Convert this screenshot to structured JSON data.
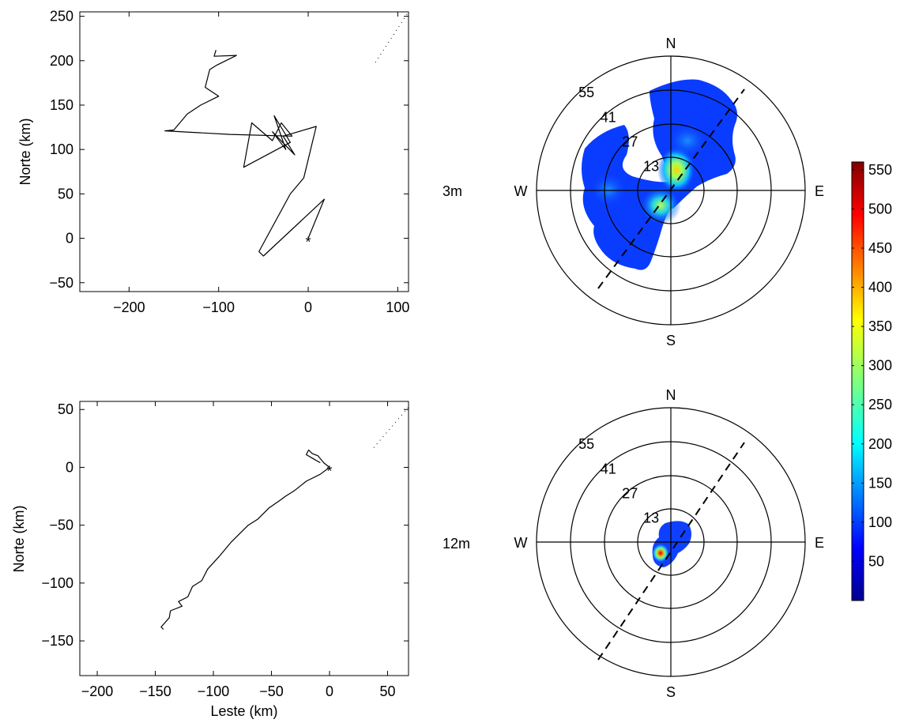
{
  "chart_data": [
    {
      "type": "line",
      "panel": "trajectory-3m",
      "ylabel": "Norte (km)",
      "xlabel": "",
      "xlim": [
        -255,
        112
      ],
      "ylim": [
        -60,
        255
      ],
      "xticks": [
        -200,
        -100,
        0,
        100
      ],
      "yticks": [
        -50,
        0,
        50,
        100,
        150,
        200,
        250
      ],
      "start_marker": {
        "x": 0,
        "y": 0,
        "symbol": "*"
      },
      "diagonal_reference": {
        "style": "dotted",
        "x": [
          75,
          112
        ],
        "y": [
          198,
          255
        ]
      },
      "series": [
        {
          "x": [
            0,
            18,
            -50,
            -55,
            -20,
            -5,
            -4,
            9,
            -28,
            -15,
            -40,
            -25,
            -38,
            -20,
            -72,
            -63,
            -40,
            -30,
            -18,
            -87,
            -160,
            -150,
            -135,
            -120,
            -100,
            -115,
            -110,
            -102,
            -80,
            -105,
            -103
          ],
          "y": [
            0,
            44,
            -20,
            -15,
            50,
            68,
            72,
            126,
            115,
            94,
            120,
            100,
            138,
            108,
            80,
            130,
            110,
            130,
            115,
            117,
            121,
            122,
            140,
            150,
            160,
            170,
            190,
            195,
            206,
            205,
            212
          ]
        }
      ]
    },
    {
      "type": "line",
      "panel": "trajectory-12m",
      "ylabel": "Norte (km)",
      "xlabel": "Leste (km)",
      "xlim": [
        -215,
        68
      ],
      "ylim": [
        -180,
        57
      ],
      "xticks": [
        -200,
        -150,
        -100,
        -50,
        0,
        50
      ],
      "yticks": [
        -150,
        -100,
        -50,
        0,
        50
      ],
      "start_marker": {
        "x": 0,
        "y": 0,
        "symbol": "*"
      },
      "diagonal_reference": {
        "style": "dotted",
        "x": [
          38,
          68
        ],
        "y": [
          17,
          52
        ]
      },
      "series": [
        {
          "x": [
            0,
            -8,
            -20,
            -30,
            -38,
            -42,
            -52,
            -62,
            -70,
            -85,
            -95,
            -105,
            -110,
            -118,
            -122,
            -130,
            -127,
            -137,
            -138,
            -145,
            -143
          ],
          "y": [
            0,
            -6,
            -12,
            -20,
            -25,
            -28,
            -35,
            -45,
            -50,
            -65,
            -77,
            -88,
            -98,
            -103,
            -112,
            -116,
            -120,
            -124,
            -130,
            -138,
            -140
          ]
        },
        {
          "x": [
            0,
            -5,
            -10,
            -15,
            -18,
            -20,
            -15,
            -8
          ],
          "y": [
            0,
            4,
            10,
            12,
            15,
            11,
            8,
            4
          ]
        }
      ]
    },
    {
      "type": "heatmap",
      "panel": "polar-3m",
      "projection": "polar",
      "row_label": "3m",
      "direction_labels": [
        "N",
        "E",
        "S",
        "W"
      ],
      "radial_ticks": [
        13,
        27,
        41,
        55
      ],
      "dashed_axis_bearing_deg": 35,
      "peak_value": 380,
      "hotspots": [
        {
          "bearing_deg": 60,
          "range": 12,
          "value": 380
        },
        {
          "bearing_deg": 215,
          "range": 10,
          "value": 260
        },
        {
          "bearing_deg": 40,
          "range": 30,
          "value": 160
        },
        {
          "bearing_deg": 275,
          "range": 28,
          "value": 90
        }
      ]
    },
    {
      "type": "heatmap",
      "panel": "polar-12m",
      "projection": "polar",
      "row_label": "12m",
      "direction_labels": [
        "N",
        "E",
        "S",
        "W"
      ],
      "radial_ticks": [
        13,
        27,
        41,
        55
      ],
      "dashed_axis_bearing_deg": 35,
      "peak_value": 550,
      "hotspots": [
        {
          "bearing_deg": 230,
          "range": 7,
          "value": 550
        },
        {
          "bearing_deg": 30,
          "range": 5,
          "value": 60
        }
      ]
    },
    {
      "type": "colorbar",
      "colormap": "jet",
      "range": [
        0,
        560
      ],
      "ticks": [
        50,
        100,
        150,
        200,
        250,
        300,
        350,
        400,
        450,
        500,
        550
      ]
    }
  ]
}
